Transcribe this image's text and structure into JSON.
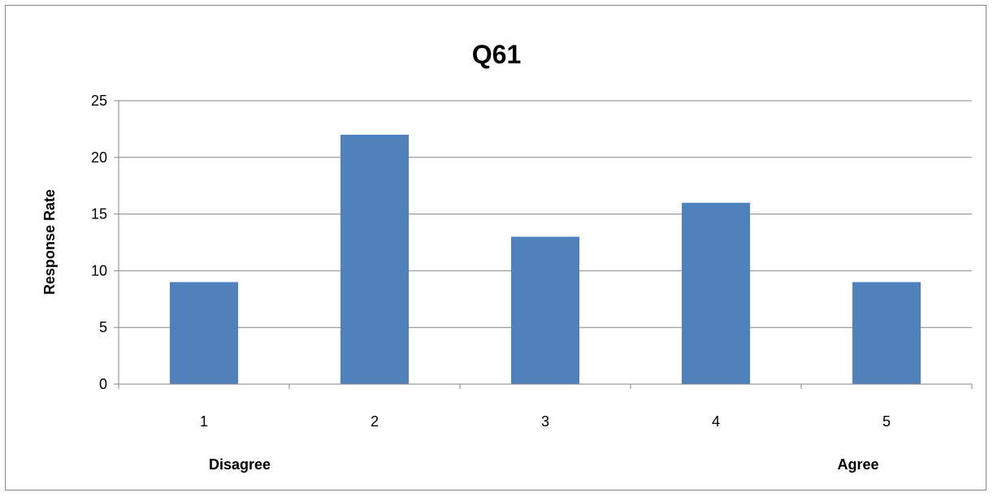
{
  "chart_data": {
    "type": "bar",
    "title": "Q61",
    "ylabel": "Response Rate",
    "xlabel": "",
    "categories": [
      "1",
      "2",
      "3",
      "4",
      "5"
    ],
    "values": [
      9,
      22,
      13,
      16,
      9
    ],
    "ylim": [
      0,
      25
    ],
    "yticks": [
      0,
      5,
      10,
      15,
      20,
      25
    ],
    "grid": true,
    "legend": "none",
    "bar_color": "#4F81BD",
    "end_labels": {
      "left": "Disagree",
      "right": "Agree"
    }
  }
}
